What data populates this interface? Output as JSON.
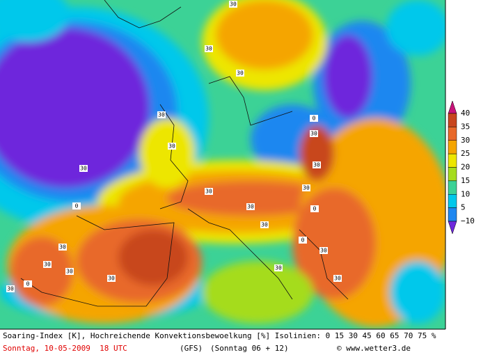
{
  "map": {
    "legend": {
      "labels": [
        "40",
        "35",
        "30",
        "25",
        "20",
        "15",
        "10",
        "5",
        "−10"
      ],
      "colors": [
        "#c8147a",
        "#c8461e",
        "#e8692a",
        "#f5a500",
        "#ede600",
        "#a5dc1e",
        "#3cd296",
        "#00c8eb",
        "#1e87f0",
        "#6e28dc"
      ]
    },
    "isoline_labels": [
      "30",
      "30",
      "30",
      "30",
      "30",
      "0",
      "30",
      "30",
      "30",
      "0",
      "30",
      "30",
      "30",
      "30",
      "0",
      "30",
      "30",
      "30",
      "0",
      "30",
      "30",
      "30",
      "0",
      "30",
      "30"
    ]
  },
  "footer": {
    "description": "Soaring-Index [K], Hochreichende Konvektionsbewoelkung [%] Isolinien: 0 15 30 45 60 65 70 75 %",
    "date": "Sonntag, 10-05-2009  18 UTC",
    "model": "(GFS)",
    "run": "(Sonntag 06 + 12)",
    "credit": "© www.wetter3.de"
  }
}
